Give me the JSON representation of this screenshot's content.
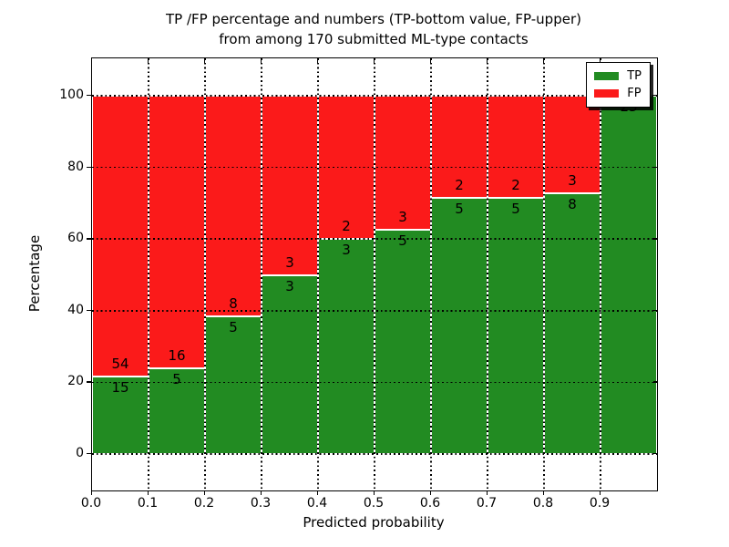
{
  "figure": {
    "title_line1": "TP /FP percentage and numbers (TP-bottom value, FP-upper)",
    "title_line2": "from among 170 submitted ML-type contacts",
    "xlabel": "Predicted probability",
    "ylabel": "Percentage"
  },
  "chart_data": {
    "type": "bar",
    "stacked": true,
    "normalized_to_percent": true,
    "title": "TP /FP percentage and numbers (TP-bottom value, FP-upper) from among 170 submitted ML-type contacts",
    "xlabel": "Predicted probability",
    "ylabel": "Percentage",
    "bin_width": 0.1,
    "bin_starts": [
      0.0,
      0.1,
      0.2,
      0.3,
      0.4,
      0.5,
      0.6,
      0.7,
      0.8,
      0.9
    ],
    "x_tick_labels": [
      "0.0",
      "0.1",
      "0.2",
      "0.3",
      "0.4",
      "0.5",
      "0.6",
      "0.7",
      "0.8",
      "0.9"
    ],
    "y_tick_labels": [
      "0",
      "20",
      "40",
      "60",
      "80",
      "100"
    ],
    "y_ticks": [
      0,
      20,
      40,
      60,
      80,
      100
    ],
    "xlim": [
      0.0,
      1.0
    ],
    "ylim": [
      -10.2,
      110.4
    ],
    "grid": true,
    "total_contacts": 170,
    "series": [
      {
        "name": "TP",
        "color": "#228b22",
        "counts": [
          15,
          5,
          5,
          3,
          3,
          5,
          5,
          5,
          8,
          23
        ]
      },
      {
        "name": "FP",
        "color": "#fb1a1a",
        "counts": [
          54,
          16,
          8,
          3,
          2,
          3,
          2,
          2,
          3,
          0
        ]
      }
    ],
    "tp_percent": [
      21.74,
      23.81,
      38.46,
      50.0,
      60.0,
      62.5,
      71.43,
      71.43,
      72.73,
      100.0
    ]
  },
  "legend": {
    "position": "upper right",
    "entries": [
      {
        "label": "TP",
        "color": "#228b22"
      },
      {
        "label": "FP",
        "color": "#fb1a1a"
      }
    ]
  }
}
